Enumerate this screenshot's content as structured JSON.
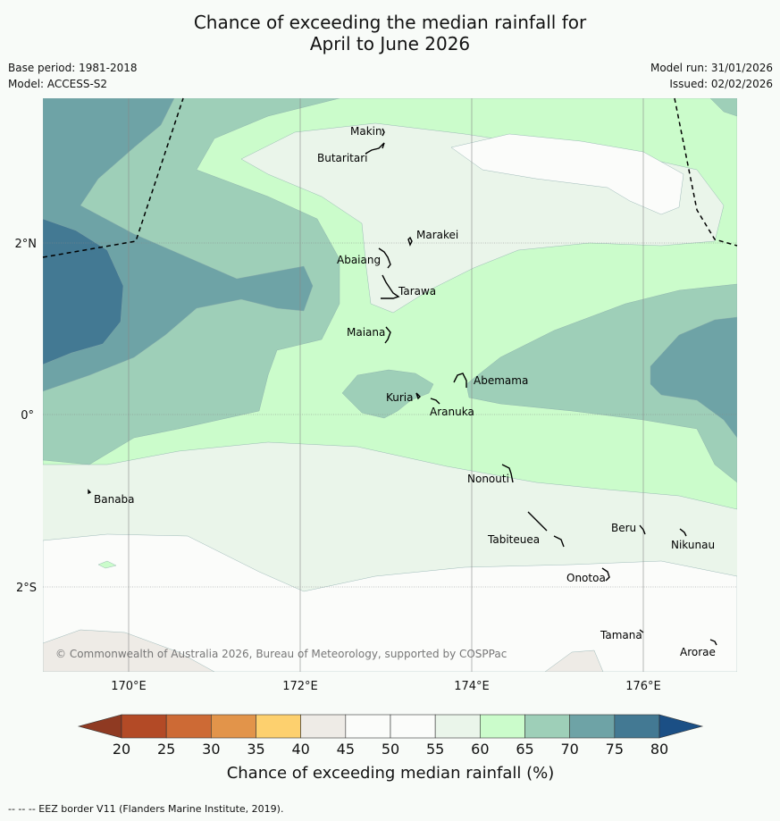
{
  "title": {
    "line1": "Chance of exceeding the median rainfall for",
    "line2": "April to June 2026"
  },
  "info": {
    "base_period": "Base period: 1981-2018",
    "model": "Model: ACCESS-S2",
    "model_run": "Model run: 31/01/2026",
    "issued": "Issued: 02/02/2026"
  },
  "map": {
    "lon_labels": [
      "170°E",
      "172°E",
      "174°E",
      "176°E"
    ],
    "lat_labels": [
      "2°N",
      "0°",
      "2°S"
    ],
    "copyright": "© Commonwealth of Australia 2026, Bureau of Meteorology, supported by COSPPac",
    "places": [
      "Makin",
      "Butaritari",
      "Marakei",
      "Abaiang",
      "Tarawa",
      "Maiana",
      "Abemama",
      "Kuria",
      "Aranuka",
      "Nonouti",
      "Banaba",
      "Beru",
      "Nikunau",
      "Tabiteuea",
      "Onotoa",
      "Tamana",
      "Arorae"
    ]
  },
  "colorbar": {
    "ticks": [
      "20",
      "25",
      "30",
      "35",
      "40",
      "45",
      "50",
      "55",
      "60",
      "65",
      "70",
      "75",
      "80"
    ],
    "colors": [
      "#b34a26",
      "#cd6a35",
      "#e2944a",
      "#fdd06e",
      "#eeebe6",
      "#fbfcfa",
      "#fbfcfa",
      "#eaf5ea",
      "#cbfccb",
      "#9ecfb8",
      "#6ea3a6",
      "#437993"
    ],
    "under_color": "#8f3a22",
    "over_color": "#1b4f85",
    "label": "Chance of exceeding median rainfall (%)"
  },
  "footer": "-- -- -- EEZ border V11 (Flanders Marine Institute, 2019)."
}
